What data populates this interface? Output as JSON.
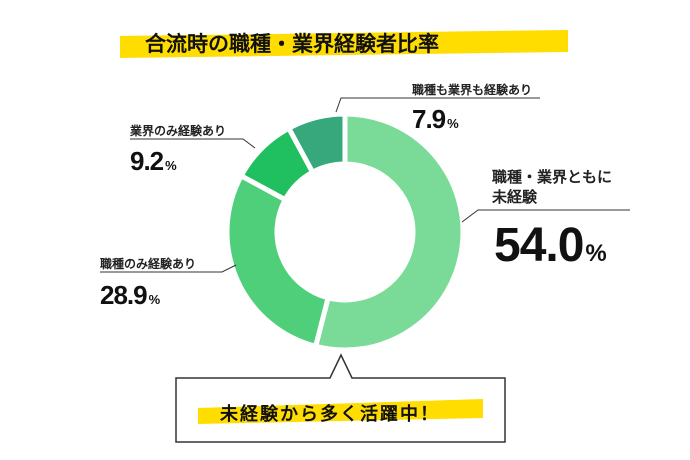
{
  "chart_data": {
    "type": "pie",
    "title": "合流時の職種・業界経験者比率",
    "slices": [
      {
        "label": "職種・業界ともに未経験",
        "label_lines": [
          "職種・業界ともに",
          "未経験"
        ],
        "value": 54.0,
        "value_text": "54.0",
        "color": "#79db97"
      },
      {
        "label": "職種のみ経験あり",
        "value": 28.9,
        "value_text": "28.9",
        "color": "#50cf7b"
      },
      {
        "label": "業界のみ経験あり",
        "value": 9.2,
        "value_text": "9.2",
        "color": "#20bf5f"
      },
      {
        "label": "職種も業界も経験あり",
        "value": 7.9,
        "value_text": "7.9",
        "color": "#36a87b"
      }
    ],
    "unit": "%",
    "callout": "未経験から多く活躍中！",
    "highlight_color": "#ffdd00"
  }
}
